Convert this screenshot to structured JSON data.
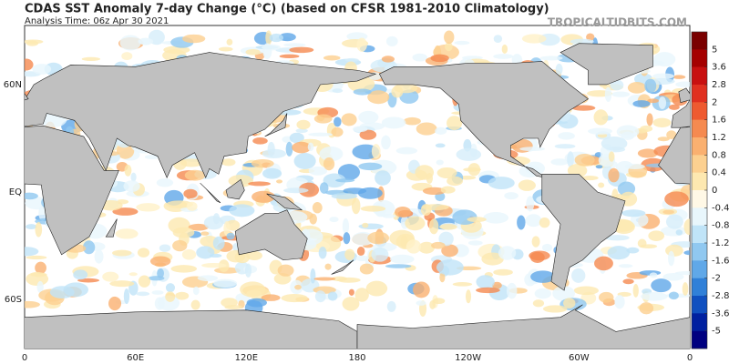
{
  "header": {
    "title": "CDAS SST Anomaly 7-day Change (°C) (based on CFSR 1981-2010 Climatology)",
    "subtitle": "Analysis Time: 06z Apr 30 2021",
    "watermark": "TROPICALTIDBITS.COM"
  },
  "map": {
    "lon_ticks": [
      "0",
      "60E",
      "120E",
      "180",
      "120W",
      "60W",
      "0"
    ],
    "lat_ticks": [
      "60N",
      "EQ",
      "60S"
    ]
  },
  "colorbar": {
    "ticks": [
      5,
      3.6,
      2.8,
      2,
      1.6,
      1.2,
      0.8,
      0.4,
      0,
      -0.4,
      -0.8,
      -1.2,
      -1.6,
      -2,
      -2.8,
      -3.6,
      -5
    ],
    "colors": [
      "#7a0000",
      "#a50000",
      "#c81010",
      "#e03020",
      "#ee5a30",
      "#f58a50",
      "#fab070",
      "#fcd090",
      "#fde8b0",
      "#fff8e6",
      "#e8f6fc",
      "#c0e4f8",
      "#90c8f0",
      "#60a8e8",
      "#3080d8",
      "#1050c0",
      "#0020a0",
      "#000080"
    ]
  }
}
